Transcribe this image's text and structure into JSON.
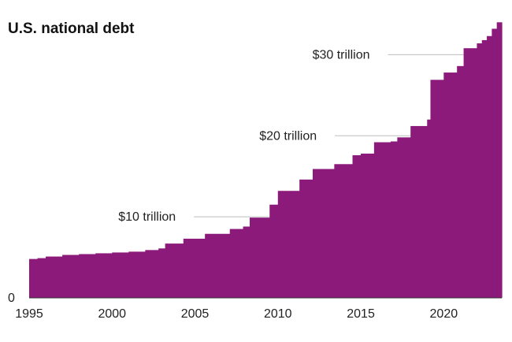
{
  "chart_data": {
    "type": "area",
    "title": "U.S. national debt",
    "xlabel": "",
    "ylabel": "",
    "xlim": [
      1995,
      2023.5
    ],
    "ylim": [
      0,
      35
    ],
    "x_ticks": [
      1995,
      2000,
      2005,
      2010,
      2015,
      2020
    ],
    "x_tick_labels": [
      "1995",
      "2000",
      "2005",
      "2010",
      "2015",
      "2020"
    ],
    "y_ticks": [
      0,
      10,
      20,
      30
    ],
    "y_tick_labels": [
      "0",
      "$10 trillion",
      "$20 trillion",
      "$30 trillion"
    ],
    "grid": true,
    "step": true,
    "color": "#8b1a7a",
    "x": [
      1995.0,
      1995.5,
      1996.0,
      1997.0,
      1998.0,
      1999.0,
      2000.0,
      2001.0,
      2002.0,
      2002.8,
      2003.2,
      2004.3,
      2005.6,
      2007.1,
      2007.9,
      2008.3,
      2009.5,
      2010.0,
      2011.0,
      2011.3,
      2012.1,
      2012.7,
      2013.4,
      2014.5,
      2015.0,
      2015.8,
      2016.8,
      2017.2,
      2018.0,
      2018.7,
      2019.0,
      2019.2,
      2020.0,
      2020.8,
      2021.2,
      2021.6,
      2022.0,
      2022.3,
      2022.6,
      2022.9,
      2023.2
    ],
    "values": [
      4.8,
      4.9,
      5.1,
      5.3,
      5.4,
      5.5,
      5.6,
      5.7,
      5.9,
      6.1,
      6.7,
      7.3,
      7.9,
      8.5,
      8.8,
      9.9,
      11.5,
      13.2,
      13.2,
      14.6,
      15.9,
      15.9,
      16.5,
      17.6,
      17.8,
      19.2,
      19.3,
      19.8,
      21.2,
      21.2,
      22.0,
      26.9,
      27.8,
      28.6,
      30.8,
      30.8,
      31.4,
      31.8,
      32.3,
      33.2,
      34.0
    ]
  }
}
